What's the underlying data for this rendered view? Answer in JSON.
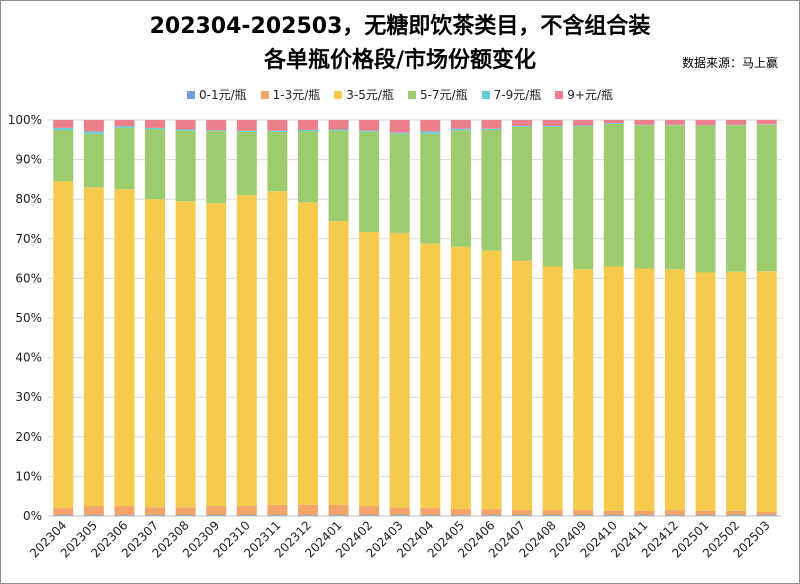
{
  "chart_data": {
    "type": "bar",
    "stacked": true,
    "title": "202304-202503，无糖即饮茶类目，不含组合装",
    "subtitle": "各单瓶价格段/市场份额变化",
    "source": "数据来源：马上赢",
    "ylim": [
      0,
      100
    ],
    "yticks": [
      "0%",
      "10%",
      "20%",
      "30%",
      "40%",
      "50%",
      "60%",
      "70%",
      "80%",
      "90%",
      "100%"
    ],
    "grid": true,
    "legend_position": "top",
    "categories": [
      "202304",
      "202305",
      "202306",
      "202307",
      "202308",
      "202309",
      "202310",
      "202311",
      "202312",
      "202401",
      "202402",
      "202403",
      "202404",
      "202405",
      "202406",
      "202407",
      "202408",
      "202409",
      "202410",
      "202411",
      "202412",
      "202501",
      "202502",
      "202503"
    ],
    "series": [
      {
        "name": "0-1元/瓶",
        "color": "#6fa0d8",
        "values": [
          0.2,
          0.2,
          0.2,
          0.2,
          0.2,
          0.2,
          0.2,
          0.2,
          0.2,
          0.2,
          0.2,
          0.2,
          0.2,
          0.2,
          0.2,
          0.2,
          0.2,
          0.2,
          0.2,
          0.2,
          0.2,
          0.2,
          0.2,
          0.2
        ]
      },
      {
        "name": "1-3元/瓶",
        "color": "#f4a46a",
        "values": [
          1.8,
          2.3,
          2.3,
          2.0,
          2.0,
          2.3,
          2.3,
          2.6,
          2.6,
          2.6,
          2.3,
          2.0,
          1.8,
          1.6,
          1.6,
          1.3,
          1.3,
          1.3,
          1.1,
          1.1,
          1.3,
          1.1,
          1.1,
          0.8
        ]
      },
      {
        "name": "3-5元/瓶",
        "color": "#f6cb4d",
        "values": [
          82.5,
          80.5,
          80.0,
          77.8,
          77.3,
          76.5,
          78.5,
          79.2,
          76.4,
          71.7,
          69.2,
          69.3,
          66.8,
          66.2,
          65.2,
          63.0,
          61.5,
          60.8,
          61.7,
          61.2,
          60.8,
          60.2,
          60.4,
          60.8
        ]
      },
      {
        "name": "5-7元/瓶",
        "color": "#9ccc6e",
        "values": [
          13.0,
          13.5,
          15.5,
          17.7,
          17.8,
          18.2,
          16.0,
          15.0,
          18.0,
          22.8,
          25.3,
          25.0,
          27.7,
          29.4,
          30.5,
          33.8,
          35.3,
          36.1,
          36.0,
          36.2,
          36.4,
          37.1,
          37.0,
          37.0
        ]
      },
      {
        "name": "7-9元/瓶",
        "color": "#66cdd6",
        "values": [
          0.5,
          0.6,
          0.4,
          0.3,
          0.3,
          0.2,
          0.3,
          0.3,
          0.3,
          0.3,
          0.3,
          0.3,
          0.6,
          0.4,
          0.3,
          0.2,
          0.2,
          0.2,
          0.2,
          0.1,
          0.1,
          0.1,
          0.1,
          0.1
        ]
      },
      {
        "name": "9+元/瓶",
        "color": "#ec7f8c",
        "values": [
          2.0,
          2.9,
          1.6,
          2.0,
          2.4,
          2.6,
          2.7,
          2.7,
          2.5,
          2.4,
          2.7,
          3.2,
          2.9,
          2.2,
          2.2,
          1.5,
          1.5,
          1.4,
          0.8,
          1.2,
          1.2,
          1.3,
          1.2,
          1.1
        ]
      }
    ]
  }
}
